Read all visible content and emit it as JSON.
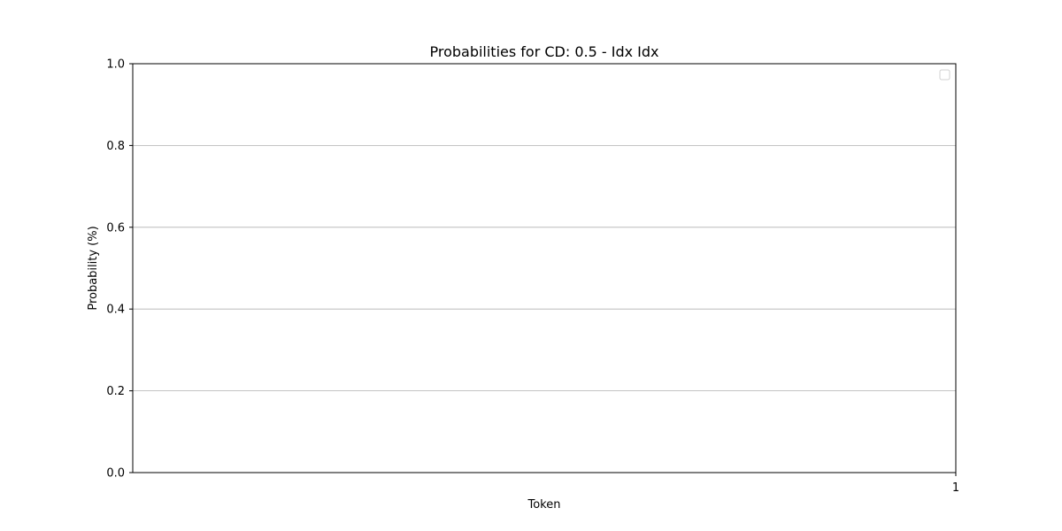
{
  "chart_data": {
    "type": "bar",
    "title": "Probabilities for CD: 0.5 - Idx Idx",
    "xlabel": "Token",
    "ylabel": "Probability (%)",
    "x_ticks": [
      "1"
    ],
    "y_ticks": [
      "0.0",
      "0.2",
      "0.4",
      "0.6",
      "0.8",
      "1.0"
    ],
    "ylim": [
      0,
      1
    ],
    "grid": "y",
    "legend": {
      "placement": "top-right",
      "entries": []
    },
    "series": []
  }
}
